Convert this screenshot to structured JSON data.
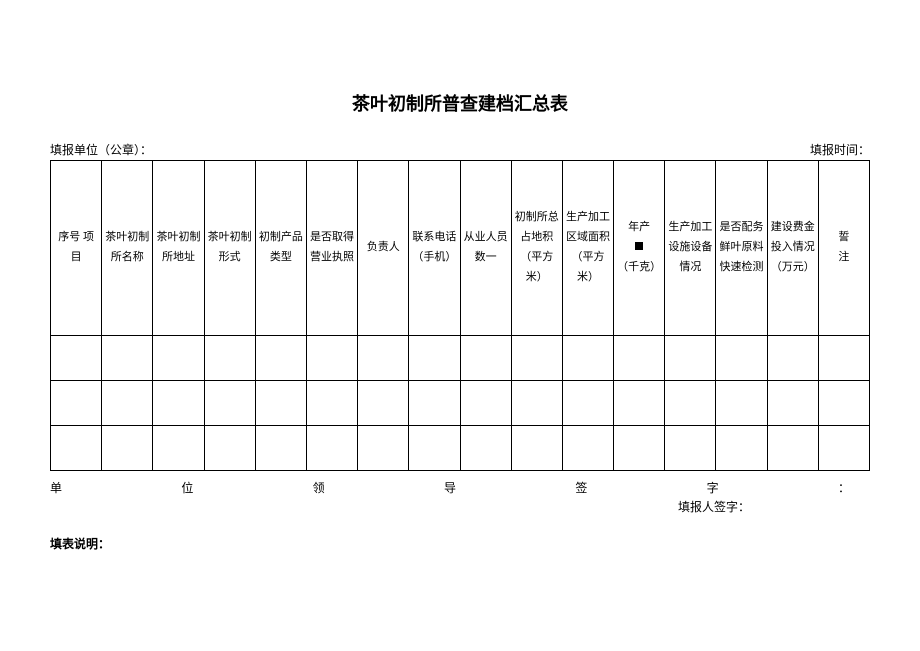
{
  "title": "茶叶初制所普查建档汇总表",
  "meta": {
    "left": "填报单位（公章）：",
    "right": "填报时间："
  },
  "table": {
    "headers": [
      "序号\n项目",
      "茶叶初制所名称",
      "茶叶初制所地址",
      "茶叶初制形式",
      "初制产品类型",
      "是否取得营业执照",
      "负责人",
      "联系电话（手机）",
      "从业人员数一",
      "初制所总占地积（平方米）",
      "生产加工区域面积（平方米）",
      "年产\n■\n（千克）",
      "生产加工设施设备情况",
      "是否配务鲜叶原料快速检测",
      "建设费金投入情况（万元）",
      "誓\n注"
    ],
    "column_count": 16,
    "data_rows": 3
  },
  "signature": {
    "spread_chars": [
      "单",
      "位",
      "领",
      "导",
      "签",
      "字",
      "："
    ],
    "right_label": "填报人签字："
  },
  "note_label": "填表说明："
}
